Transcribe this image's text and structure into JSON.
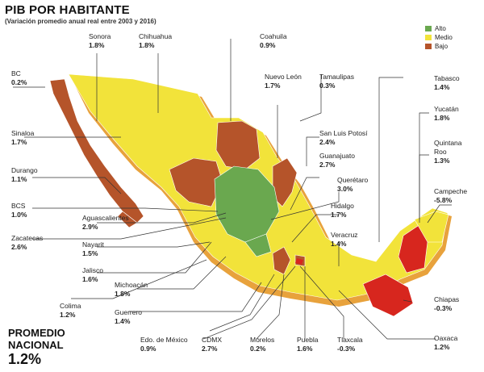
{
  "title": "PIB POR HABITANTE",
  "subtitle": "(Variación promedio anual real entre 2003 y 2016)",
  "legend": [
    {
      "label": "Alto",
      "color": "#6aa84f"
    },
    {
      "label": "Medio",
      "color": "#f2e33a"
    },
    {
      "label": "Bajo",
      "color": "#b5542a"
    }
  ],
  "average": {
    "line1": "PROMEDIO",
    "line2": "NACIONAL",
    "value": "1.2%"
  },
  "colors": {
    "alto": "#6aa84f",
    "medio": "#f2e33a",
    "bajo": "#b5542a",
    "very_low": "#d7261e",
    "shadow": "#e8a23c"
  },
  "states": [
    {
      "id": "sonora",
      "name": "Sonora",
      "value": "1.8%",
      "level": "medio"
    },
    {
      "id": "chihuahua",
      "name": "Chihuahua",
      "value": "1.8%",
      "level": "medio"
    },
    {
      "id": "coahuila",
      "name": "Coahuila",
      "value": "0.9%",
      "level": "bajo"
    },
    {
      "id": "bc",
      "name": "BC",
      "value": "0.2%",
      "level": "bajo"
    },
    {
      "id": "nuevo-leon",
      "name": "Nuevo León",
      "value": "1.7%",
      "level": "medio"
    },
    {
      "id": "tamaulipas",
      "name": "Tamaulipas",
      "value": "0.3%",
      "level": "bajo"
    },
    {
      "id": "tabasco",
      "name": "Tabasco",
      "value": "1.4%",
      "level": "medio"
    },
    {
      "id": "yucatan",
      "name": "Yucatán",
      "value": "1.8%",
      "level": "medio"
    },
    {
      "id": "sinaloa",
      "name": "Sinaloa",
      "value": "1.7%",
      "level": "medio"
    },
    {
      "id": "san-luis-potosi",
      "name": "San Luis Potosí",
      "value": "2.4%",
      "level": "alto"
    },
    {
      "id": "quintana-roo",
      "name": "Quintana Roo",
      "value": "1.3%",
      "level": "medio"
    },
    {
      "id": "guanajuato",
      "name": "Guanajuato",
      "value": "2.7%",
      "level": "alto"
    },
    {
      "id": "durango",
      "name": "Durango",
      "value": "1.1%",
      "level": "bajo"
    },
    {
      "id": "queretaro",
      "name": "Querétaro",
      "value": "3.0%",
      "level": "alto"
    },
    {
      "id": "campeche",
      "name": "Campeche",
      "value": "-5.8%",
      "level": "bajo"
    },
    {
      "id": "bcs",
      "name": "BCS",
      "value": "1.0%",
      "level": "bajo"
    },
    {
      "id": "aguascalientes",
      "name": "Aguascalientes",
      "value": "2.9%",
      "level": "alto"
    },
    {
      "id": "hidalgo",
      "name": "Hidalgo",
      "value": "1.7%",
      "level": "medio"
    },
    {
      "id": "zacatecas",
      "name": "Zacatecas",
      "value": "2.6%",
      "level": "alto"
    },
    {
      "id": "veracruz",
      "name": "Veracruz",
      "value": "1.4%",
      "level": "medio"
    },
    {
      "id": "nayarit",
      "name": "Nayarit",
      "value": "1.5%",
      "level": "medio"
    },
    {
      "id": "jalisco",
      "name": "Jalisco",
      "value": "1.6%",
      "level": "medio"
    },
    {
      "id": "michoacan",
      "name": "Michoacán",
      "value": "1.8%",
      "level": "medio"
    },
    {
      "id": "colima",
      "name": "Colima",
      "value": "1.2%",
      "level": "medio"
    },
    {
      "id": "chiapas",
      "name": "Chiapas",
      "value": "-0.3%",
      "level": "bajo"
    },
    {
      "id": "guerrero",
      "name": "Guerrero",
      "value": "1.4%",
      "level": "medio"
    },
    {
      "id": "oaxaca",
      "name": "Oaxaca",
      "value": "1.2%",
      "level": "medio"
    },
    {
      "id": "edo-mexico",
      "name": "Edo. de México",
      "value": "0.9%",
      "level": "bajo"
    },
    {
      "id": "cdmx",
      "name": "CDMX",
      "value": "2.7%",
      "level": "alto"
    },
    {
      "id": "morelos",
      "name": "Morelos",
      "value": "0.2%",
      "level": "bajo"
    },
    {
      "id": "puebla",
      "name": "Puebla",
      "value": "1.6%",
      "level": "medio"
    },
    {
      "id": "tlaxcala",
      "name": "Tlaxcala",
      "value": "-0.3%",
      "level": "bajo"
    }
  ]
}
